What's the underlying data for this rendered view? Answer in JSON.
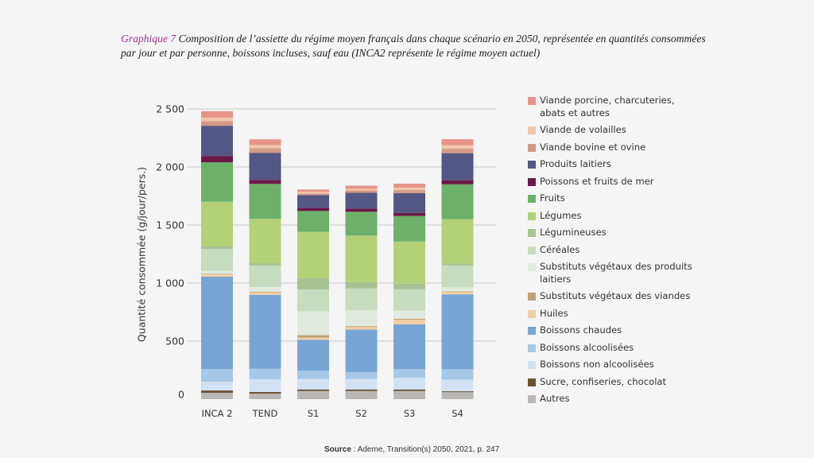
{
  "title": {
    "number": "Graphique 7",
    "text": " Composition de l’assiette du régime moyen français dans chaque scénario en 2050, représentée en quantités consommées par jour et par personne, boissons incluses, sauf eau (INCA2 représente le régime moyen actuel)"
  },
  "source": {
    "label": "Source",
    "text": " : Ademe, Transition(s) 2050, 2021, p. 247"
  },
  "chart_data": {
    "type": "bar",
    "stacked": true,
    "title": "Composition de l’assiette du régime moyen français dans chaque scénario en 2050",
    "xlabel": "",
    "ylabel": "Quantité consommée (g/jour/pers.)",
    "ylim": [
      0,
      2500
    ],
    "yticks": [
      0,
      500,
      1000,
      1500,
      2000,
      2500
    ],
    "ytick_labels": [
      "0",
      "500",
      "1 000",
      "1 500",
      "2 000",
      "2 500"
    ],
    "grid": true,
    "legend_position": "right",
    "categories": [
      "INCA 2",
      "TEND",
      "S1",
      "S2",
      "S3",
      "S4"
    ],
    "series": [
      {
        "name": "Autres",
        "color": "#b9b7b6",
        "values": [
          55,
          48,
          70,
          70,
          70,
          60
        ]
      },
      {
        "name": "Sucre, confiseries, chocolat",
        "color": "#6b5433",
        "values": [
          20,
          14,
          14,
          14,
          14,
          8
        ]
      },
      {
        "name": "Boissons non alcoolisées",
        "color": "#d3e2f3",
        "values": [
          75,
          110,
          90,
          90,
          100,
          100
        ]
      },
      {
        "name": "Boissons alcoolisées",
        "color": "#a6c7e6",
        "values": [
          110,
          90,
          70,
          60,
          75,
          90
        ]
      },
      {
        "name": "Boissons chaudes",
        "color": "#78a6d4",
        "values": [
          795,
          637,
          267,
          365,
          385,
          645
        ]
      },
      {
        "name": "Huiles",
        "color": "#f2cea6",
        "values": [
          20,
          20,
          20,
          22,
          40,
          20
        ]
      },
      {
        "name": "Substituts végétaux des viandes",
        "color": "#c0a274",
        "values": [
          5,
          7,
          20,
          8,
          8,
          5
        ]
      },
      {
        "name": "Substituts végétaux des produits laitiers",
        "color": "#e2eadf",
        "values": [
          25,
          40,
          205,
          135,
          70,
          35
        ]
      },
      {
        "name": "Céréales",
        "color": "#c7dbbf",
        "values": [
          190,
          185,
          190,
          190,
          185,
          190
        ]
      },
      {
        "name": "Légumineuses",
        "color": "#a8c292",
        "values": [
          20,
          20,
          95,
          55,
          48,
          15
        ]
      },
      {
        "name": "Légumes",
        "color": "#b4d178",
        "values": [
          385,
          383,
          400,
          400,
          363,
          383
        ]
      },
      {
        "name": "Fruits",
        "color": "#6cb06a",
        "values": [
          340,
          300,
          180,
          205,
          220,
          300
        ]
      },
      {
        "name": "Poissons et fruits de mer",
        "color": "#6a1a48",
        "values": [
          55,
          35,
          27,
          27,
          27,
          35
        ]
      },
      {
        "name": "Produits laitiers",
        "color": "#545783",
        "values": [
          260,
          233,
          110,
          137,
          170,
          233
        ]
      },
      {
        "name": "Viande bovine et ovine",
        "color": "#d49a88",
        "values": [
          40,
          40,
          14,
          20,
          27,
          40
        ]
      },
      {
        "name": "Viande de volailles",
        "color": "#f3c6a9",
        "values": [
          30,
          28,
          14,
          14,
          20,
          28
        ]
      },
      {
        "name": "Viande porcine, charcuteries, abats et autres",
        "color": "#e7938a",
        "values": [
          55,
          48,
          20,
          27,
          34,
          52
        ]
      }
    ]
  },
  "legend": [
    {
      "label": "Viande porcine, charcuteries, abats et autres",
      "color": "#e7938a"
    },
    {
      "label": "Viande de volailles",
      "color": "#f3c6a9"
    },
    {
      "label": "Viande bovine et ovine",
      "color": "#d49a88"
    },
    {
      "label": "Produits laitiers",
      "color": "#545783"
    },
    {
      "label": "Poissons et fruits de mer",
      "color": "#6a1a48"
    },
    {
      "label": "Fruits",
      "color": "#6cb06a"
    },
    {
      "label": "Légumes",
      "color": "#b4d178"
    },
    {
      "label": "Légumineuses",
      "color": "#a8c292"
    },
    {
      "label": "Céréales",
      "color": "#c7dbbf"
    },
    {
      "label": "Substituts végétaux des produits laitiers",
      "color": "#e2eadf"
    },
    {
      "label": "Substituts végétaux des viandes",
      "color": "#c0a274"
    },
    {
      "label": "Huiles",
      "color": "#f2cea6"
    },
    {
      "label": "Boissons chaudes",
      "color": "#78a6d4"
    },
    {
      "label": "Boissons alcoolisées",
      "color": "#a6c7e6"
    },
    {
      "label": "Boissons non alcoolisées",
      "color": "#d3e2f3"
    },
    {
      "label": "Sucre, confiseries, chocolat",
      "color": "#6b5433"
    },
    {
      "label": "Autres",
      "color": "#b9b7b6"
    }
  ]
}
